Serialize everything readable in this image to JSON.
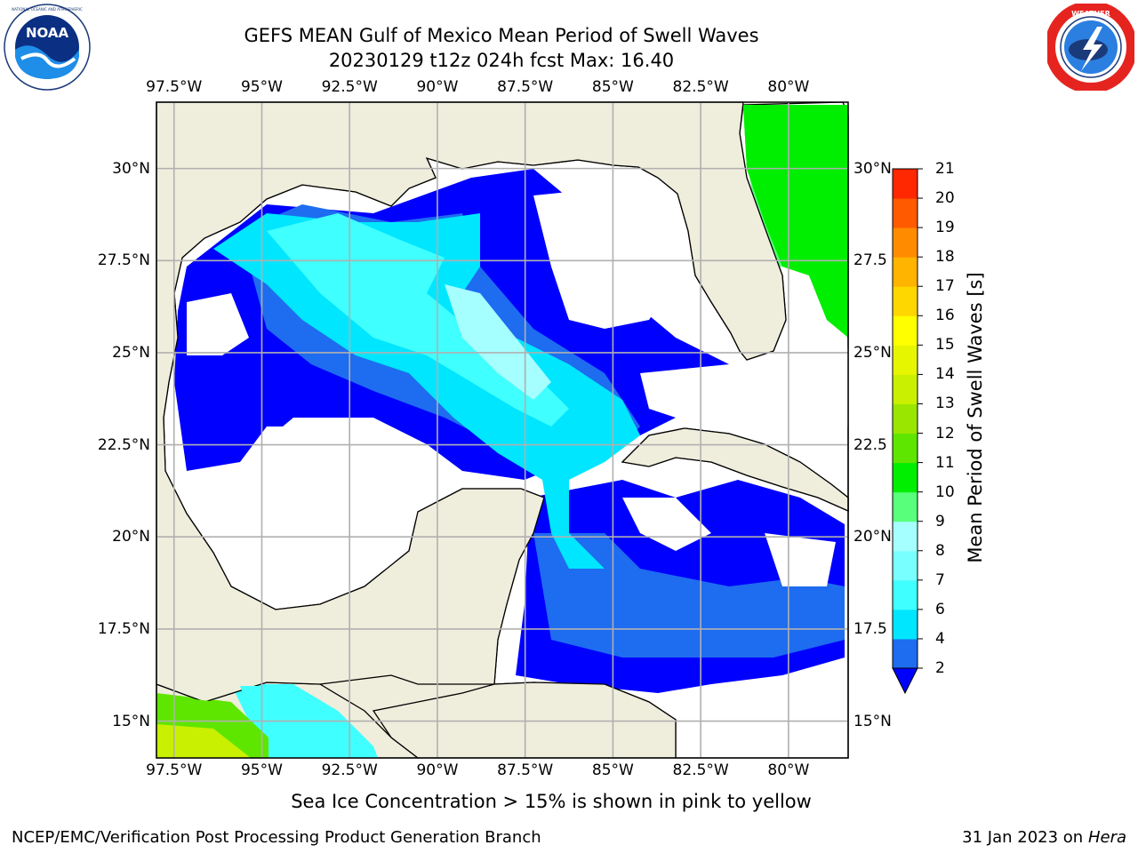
{
  "title": {
    "line1": "GEFS MEAN Gulf of Mexico Mean Period of Swell Waves",
    "line2": "20230129 t12z 024h fcst   Max: 16.40"
  },
  "logos": {
    "left": {
      "icon": "noaa-logo-icon",
      "text": "NOAA",
      "ring_text": "NATIONAL OCEANIC AND ATMOSPHERIC ADMINISTRATION · U.S. DEPARTMENT OF COMMERCE"
    },
    "right": {
      "icon": "nws-logo-icon",
      "ring_text": "NATIONAL WEATHER SERVICE"
    }
  },
  "map": {
    "lon_ticks": [
      "97.5°W",
      "95°W",
      "92.5°W",
      "90°W",
      "87.5°W",
      "85°W",
      "82.5°W",
      "80°W"
    ],
    "lon_values": [
      -97.5,
      -95,
      -92.5,
      -90,
      -87.5,
      -85,
      -82.5,
      -80
    ],
    "lat_ticks_left": [
      "30°N",
      "27.5°N",
      "25°N",
      "22.5°N",
      "20°N",
      "17.5°N",
      "15°N"
    ],
    "lat_ticks_right": [
      "30°N",
      "27.5",
      "25°N",
      "22.5",
      "20°N",
      "17.5",
      "15°N"
    ],
    "lat_values": [
      30,
      27.5,
      25,
      22.5,
      20,
      17.5,
      15
    ],
    "extent": {
      "lon": [
        -98,
        -78.3
      ],
      "lat": [
        14,
        31.8
      ]
    },
    "grid": true,
    "colors": {
      "land": "#efeddc",
      "ocean_nodata": "#ffffff",
      "grid": "#b0b0b0",
      "coast": "#000000"
    }
  },
  "colorbar": {
    "title": "Mean Period of Swell Waves [s]",
    "levels": [
      "2",
      "4",
      "6",
      "7",
      "8",
      "9",
      "10",
      "11",
      "12",
      "13",
      "14",
      "15",
      "16",
      "17",
      "18",
      "19",
      "20",
      "21"
    ],
    "colors": [
      "#1e6cf0",
      "#00e6ff",
      "#40ffff",
      "#78ffff",
      "#a6ffff",
      "#57ff7a",
      "#00ee00",
      "#5fe600",
      "#9ae600",
      "#c8f000",
      "#e6f500",
      "#ffff00",
      "#ffd700",
      "#ffb400",
      "#ff8c00",
      "#ff5a00",
      "#ff2800"
    ],
    "under_color": "#0000ff",
    "extend": "min"
  },
  "note": "Sea Ice Concentration > 15% is shown in pink to yellow",
  "footer": {
    "left": "NCEP/EMC/Verification Post Processing Product Generation Branch",
    "date": "31 Jan 2023 on",
    "machine": "Hera"
  }
}
